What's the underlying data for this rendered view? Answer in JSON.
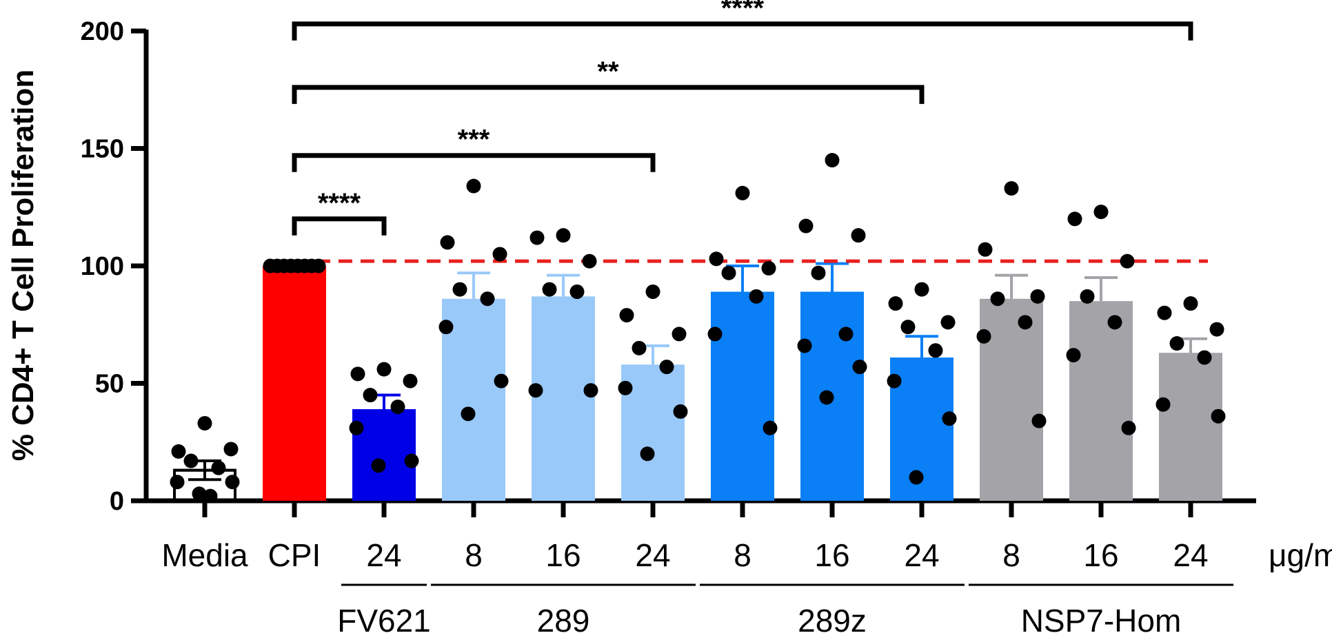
{
  "chart_data": {
    "type": "bar",
    "ylabel": "% CD4+ T Cell  Proliferation",
    "ylim": [
      0,
      200
    ],
    "yticks": [
      0,
      50,
      100,
      150,
      200
    ],
    "unit_label": "μg/ml",
    "reference_line": {
      "value": 102,
      "color": "#e8201f",
      "style": "dashed"
    },
    "bars": [
      {
        "label": "Media",
        "group": "",
        "mean": 13,
        "sem": 4,
        "color": "#9b9b9b",
        "outline": true,
        "points": [
          33,
          21,
          22,
          17,
          14,
          8,
          8,
          3,
          2
        ]
      },
      {
        "label": "CPI",
        "group": "",
        "mean": 100,
        "sem": 0,
        "color": "#ff0000",
        "points": [
          100,
          100,
          100,
          100,
          100,
          100,
          100,
          100
        ]
      },
      {
        "label": "24",
        "group": "FV621",
        "mean": 39,
        "sem": 6,
        "color": "#0000e6",
        "points": [
          56,
          54,
          51,
          45,
          40,
          31,
          17,
          15
        ]
      },
      {
        "label": "8",
        "group": "289",
        "mean": 86,
        "sem": 11,
        "color": "#99c9f9",
        "points": [
          134,
          110,
          105,
          90,
          86,
          74,
          51,
          37
        ]
      },
      {
        "label": "16",
        "group": "289",
        "mean": 87,
        "sem": 9,
        "color": "#99c9f9",
        "points": [
          113,
          112,
          102,
          90,
          89,
          47,
          47
        ]
      },
      {
        "label": "24",
        "group": "289",
        "mean": 58,
        "sem": 8,
        "color": "#99c9f9",
        "points": [
          89,
          79,
          71,
          65,
          57,
          48,
          38,
          20
        ]
      },
      {
        "label": "8",
        "group": "289z",
        "mean": 89,
        "sem": 11,
        "color": "#0a7ff6",
        "points": [
          131,
          103,
          99,
          97,
          87,
          71,
          31
        ]
      },
      {
        "label": "16",
        "group": "289z",
        "mean": 89,
        "sem": 12,
        "color": "#0a7ff6",
        "points": [
          145,
          117,
          113,
          97,
          71,
          66,
          57,
          44
        ]
      },
      {
        "label": "24",
        "group": "289z",
        "mean": 61,
        "sem": 9,
        "color": "#0a7ff6",
        "points": [
          90,
          84,
          76,
          74,
          64,
          51,
          35,
          10
        ]
      },
      {
        "label": "8",
        "group": "NSP7-Hom",
        "mean": 86,
        "sem": 10,
        "color": "#a4a3a8",
        "points": [
          133,
          107,
          87,
          86,
          76,
          70,
          34
        ]
      },
      {
        "label": "16",
        "group": "NSP7-Hom",
        "mean": 85,
        "sem": 10,
        "color": "#a4a3a8",
        "points": [
          123,
          120,
          102,
          87,
          76,
          62,
          31
        ]
      },
      {
        "label": "24",
        "group": "NSP7-Hom",
        "mean": 63,
        "sem": 6,
        "color": "#a4a3a8",
        "points": [
          84,
          80,
          73,
          67,
          61,
          41,
          36
        ]
      }
    ],
    "groups": [
      {
        "name": "FV621",
        "from": 2,
        "to": 2
      },
      {
        "name": "289",
        "from": 3,
        "to": 5
      },
      {
        "name": "289z",
        "from": 6,
        "to": 8
      },
      {
        "name": "NSP7-Hom",
        "from": 9,
        "to": 11
      }
    ],
    "significance": [
      {
        "from": 1,
        "to": 2,
        "label": "****",
        "y": 120
      },
      {
        "from": 1,
        "to": 5,
        "label": "***",
        "y": 147
      },
      {
        "from": 1,
        "to": 8,
        "label": "**",
        "y": 176
      },
      {
        "from": 1,
        "to": 11,
        "label": "****",
        "y": 203
      }
    ]
  }
}
